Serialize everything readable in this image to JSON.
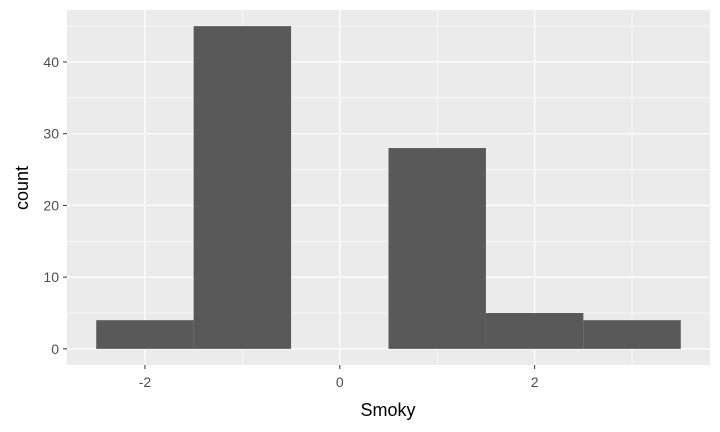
{
  "chart_data": {
    "type": "bar",
    "histogram": true,
    "bins": [
      {
        "x_start": -2.5,
        "x_end": -1.5,
        "count": 4
      },
      {
        "x_start": -1.5,
        "x_end": -0.5,
        "count": 45
      },
      {
        "x_start": -0.5,
        "x_end": 0.5,
        "count": 0
      },
      {
        "x_start": 0.5,
        "x_end": 1.5,
        "count": 28
      },
      {
        "x_start": 1.5,
        "x_end": 2.5,
        "count": 5
      },
      {
        "x_start": 2.5,
        "x_end": 3.5,
        "count": 4
      }
    ],
    "xlabel": "Smoky",
    "ylabel": "count",
    "xlim": [
      -2.8,
      3.8
    ],
    "ylim": [
      -2.25,
      47.25
    ],
    "x_ticks": [
      -2,
      0,
      2
    ],
    "x_tick_labels": [
      "-2",
      "0",
      "2"
    ],
    "y_ticks": [
      0,
      10,
      20,
      30,
      40
    ],
    "y_tick_labels": [
      "0",
      "10",
      "20",
      "30",
      "40"
    ],
    "x_minor_gridlines": [
      -1,
      1,
      3
    ],
    "y_minor_gridlines": [
      5,
      15,
      25,
      35,
      45
    ],
    "grid": true,
    "legend": "none",
    "colors": {
      "panel_background": "#ebebeb",
      "gridline": "#ffffff",
      "bar_fill": "#595959",
      "tick_mark": "#333333"
    }
  }
}
